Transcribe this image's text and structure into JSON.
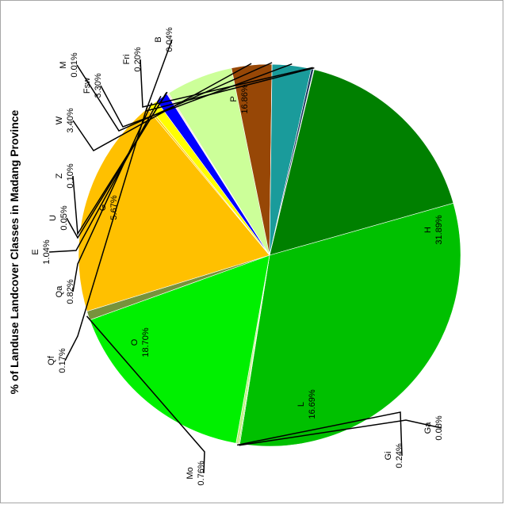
{
  "chart_data": {
    "type": "pie",
    "title": "% of Landuse Landcover Classes in Madang Province",
    "label_orientation": "rotated-90-ccw",
    "slices": [
      {
        "name": "P",
        "value": 16.86,
        "label": "16.86%",
        "color": "#008000"
      },
      {
        "name": "H",
        "value": 31.89,
        "label": "31.89%",
        "color": "#00c000"
      },
      {
        "name": "Ga",
        "value": 0.08,
        "label": "0.08%",
        "color": "#66dd33"
      },
      {
        "name": "Gi",
        "value": 0.24,
        "label": "0.24%",
        "color": "#c0f080"
      },
      {
        "name": "L",
        "value": 16.69,
        "label": "16.69%",
        "color": "#00f000"
      },
      {
        "name": "Mo",
        "value": 0.76,
        "label": "0.76%",
        "color": "#77933c"
      },
      {
        "name": "O",
        "value": 18.7,
        "label": "18.70%",
        "color": "#ffc000"
      },
      {
        "name": "Qf",
        "value": 0.17,
        "label": "0.17%",
        "color": "#ffd000"
      },
      {
        "name": "Qa",
        "value": 0.82,
        "label": "0.82%",
        "color": "#ffff00"
      },
      {
        "name": "E",
        "value": 1.04,
        "label": "1.04%",
        "color": "#0000ff"
      },
      {
        "name": "U",
        "value": 0.05,
        "label": "0.05%",
        "color": "#ff3399"
      },
      {
        "name": "Z",
        "value": 0.1,
        "label": "0.10%",
        "color": "#ffcccc"
      },
      {
        "name": "G",
        "value": 5.67,
        "label": "5.67%",
        "color": "#ccff99"
      },
      {
        "name": "W",
        "value": 3.4,
        "label": "3.40%",
        "color": "#974706"
      },
      {
        "name": "M",
        "value": 0.01,
        "label": "0.01%",
        "color": "#3366ff"
      },
      {
        "name": "Fsw",
        "value": 3.3,
        "label": "3.30%",
        "color": "#1a9b9b"
      },
      {
        "name": "Fri",
        "value": 0.2,
        "label": "0.20%",
        "color": "#17375e"
      },
      {
        "name": "B",
        "value": 0.04,
        "label": "0.04%",
        "color": "#4f81bd"
      }
    ]
  }
}
